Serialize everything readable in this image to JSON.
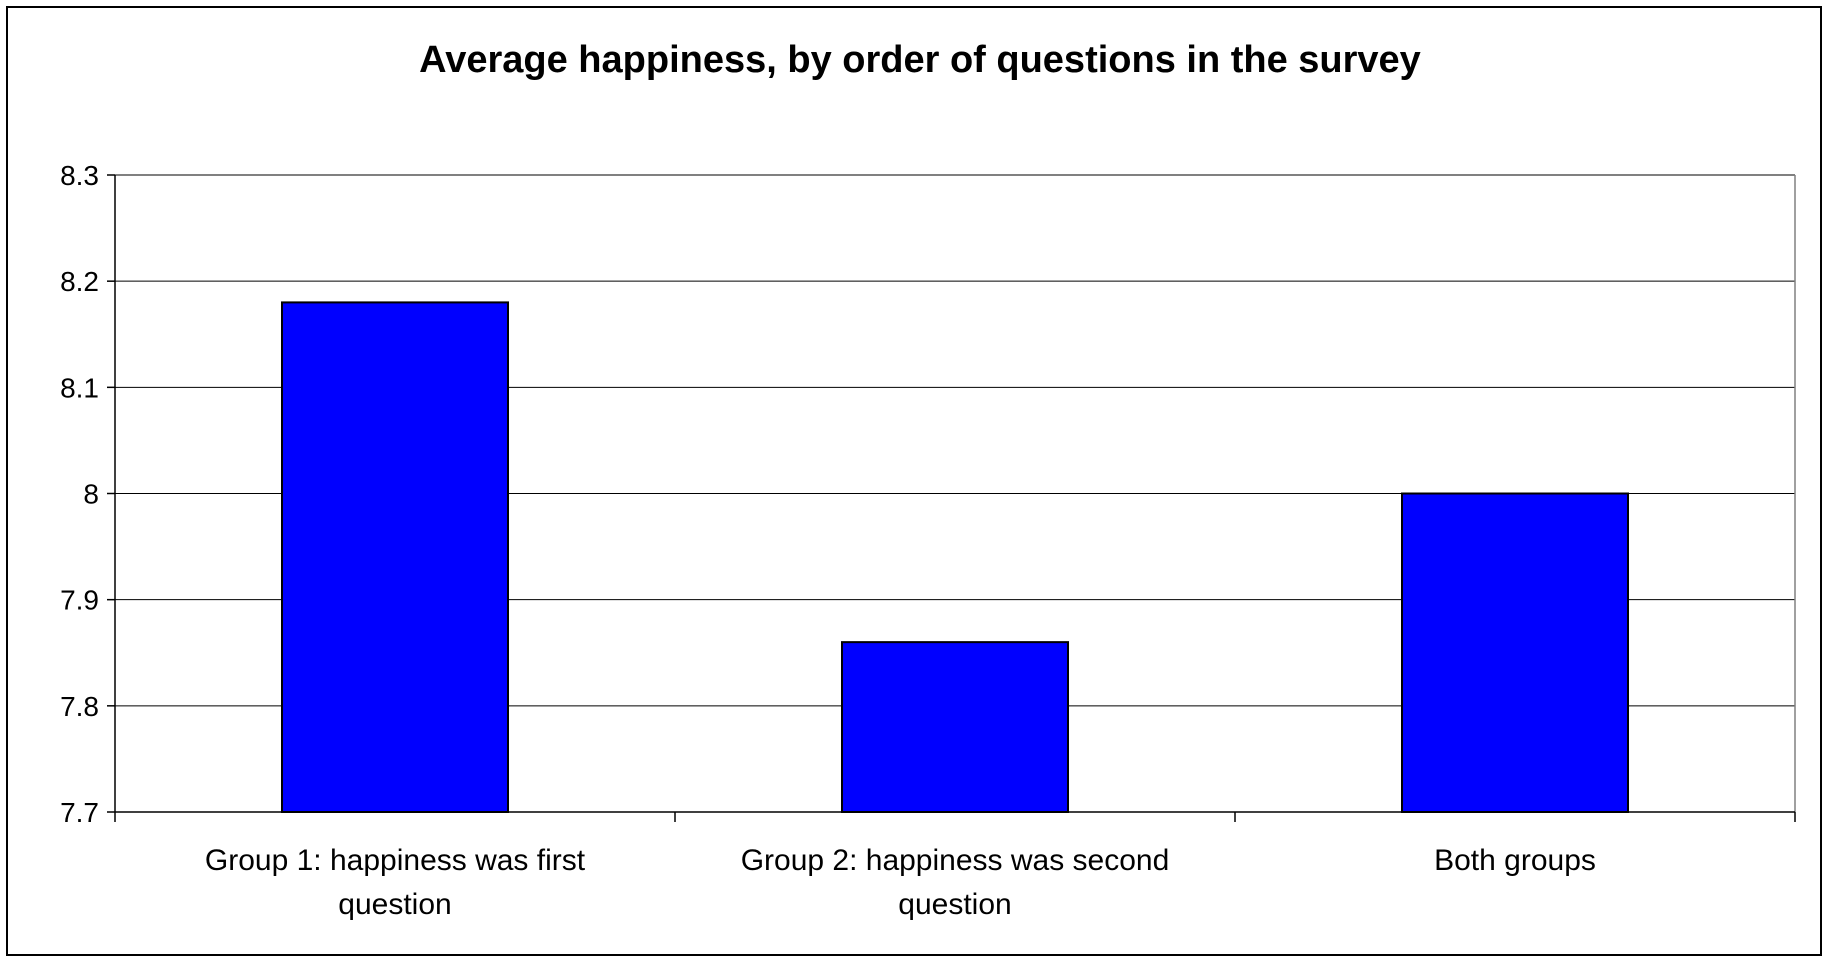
{
  "chart_data": {
    "type": "bar",
    "title": "Average happiness, by order of questions in the survey",
    "categories": [
      [
        "Group 1: happiness was first",
        "question"
      ],
      [
        "Group 2: happiness was second",
        "question"
      ],
      [
        "Both groups"
      ]
    ],
    "values": [
      8.18,
      7.86,
      8.0
    ],
    "ylim": [
      7.7,
      8.3
    ],
    "yticks": [
      "7.7",
      "7.8",
      "7.9",
      "8",
      "8.1",
      "8.2",
      "8.3"
    ],
    "grid": true,
    "legend": "none",
    "bar_color": "#0000FF",
    "xlabel": "",
    "ylabel": ""
  }
}
